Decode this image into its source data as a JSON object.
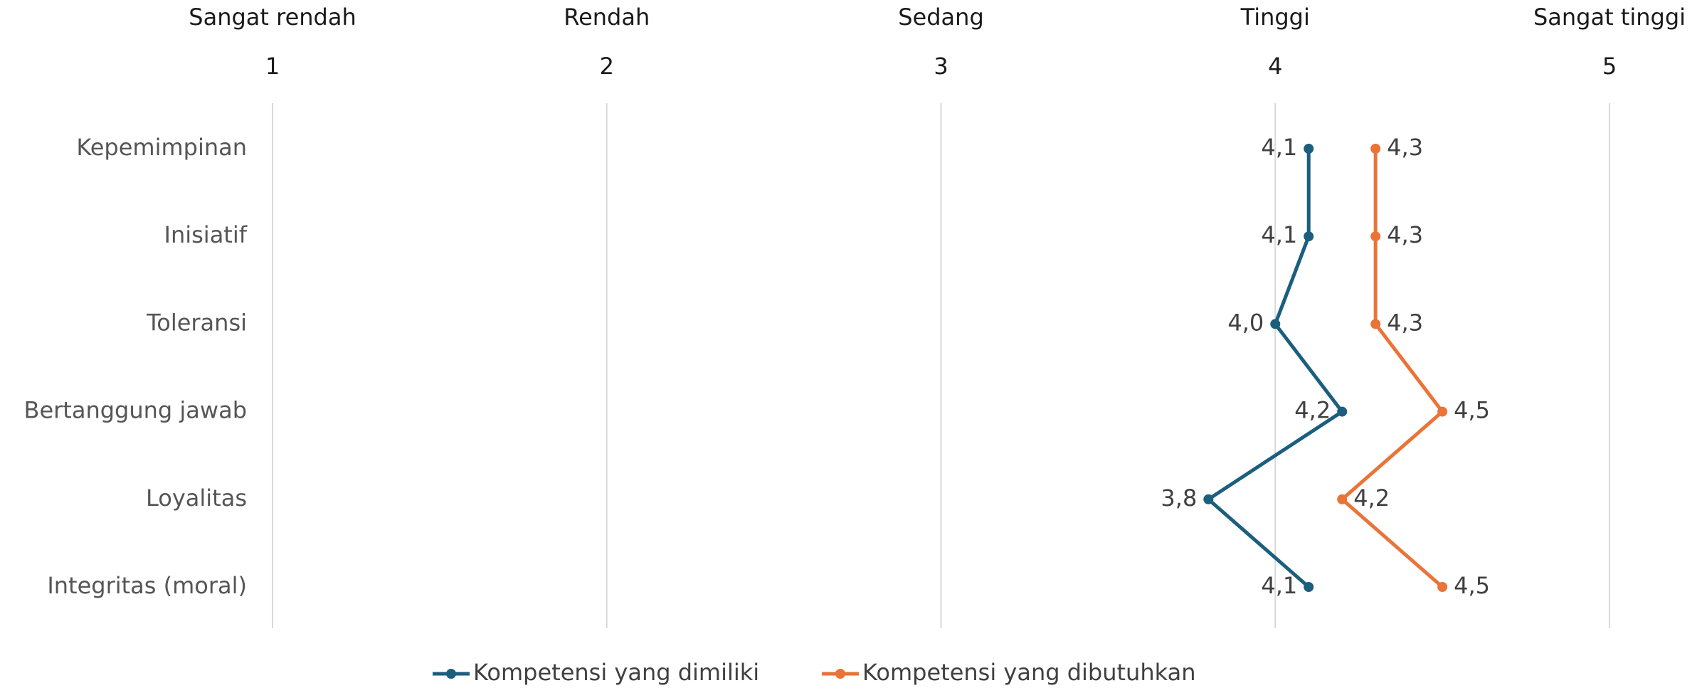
{
  "chart_data": {
    "type": "line",
    "categories": [
      "Kepemimpinan",
      "Inisiatif",
      "Toleransi",
      "Bertanggung jawab",
      "Loyalitas",
      "Integritas (moral)"
    ],
    "xlim": [
      1,
      5
    ],
    "xticks": [
      1,
      2,
      3,
      4,
      5
    ],
    "xtick_names": [
      "Sangat rendah",
      "Rendah",
      "Sedang",
      "Tinggi",
      "Sangat tinggi"
    ],
    "grid": true,
    "legend": "bottom",
    "series": [
      {
        "name": "Kompetensi yang dimiliki",
        "color": "#1b5e7e",
        "values": [
          4.1,
          4.1,
          4.0,
          4.2,
          3.8,
          4.1
        ],
        "value_labels": [
          "4,1",
          "4,1",
          "4,0",
          "4,2",
          "3,8",
          "4,1"
        ]
      },
      {
        "name": "Kompetensi yang dibutuhkan",
        "color": "#ea7437",
        "values": [
          4.3,
          4.3,
          4.3,
          4.5,
          4.2,
          4.5
        ],
        "value_labels": [
          "4,3",
          "4,3",
          "4,3",
          "4,5",
          "4,2",
          "4,5"
        ]
      }
    ]
  }
}
